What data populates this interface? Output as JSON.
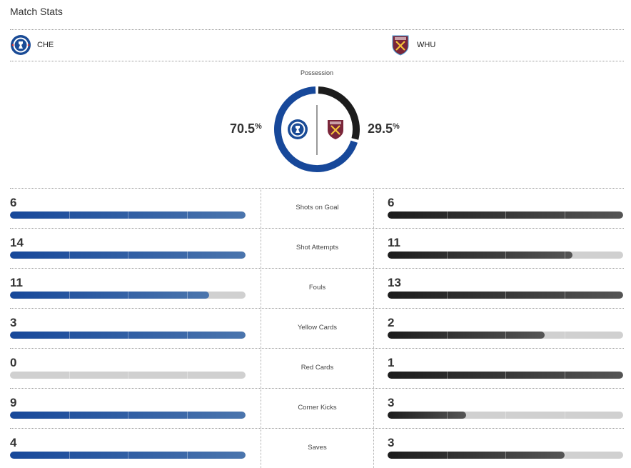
{
  "title": "Match Stats",
  "home": {
    "abbr": "CHE",
    "crest": "chelsea-crest-icon",
    "color": "#17489a",
    "possession": "70.5",
    "possession_value": 70.5
  },
  "away": {
    "abbr": "WHU",
    "crest": "west-ham-crest-icon",
    "color": "#1c1c1c",
    "possession": "29.5",
    "possession_value": 29.5
  },
  "possession_label": "Possession",
  "percent_sign": "%",
  "stats": [
    {
      "label": "Shots on Goal",
      "home": 6,
      "away": 6
    },
    {
      "label": "Shot Attempts",
      "home": 14,
      "away": 11
    },
    {
      "label": "Fouls",
      "home": 11,
      "away": 13
    },
    {
      "label": "Yellow Cards",
      "home": 3,
      "away": 2
    },
    {
      "label": "Red Cards",
      "home": 0,
      "away": 1
    },
    {
      "label": "Corner Kicks",
      "home": 9,
      "away": 3
    },
    {
      "label": "Saves",
      "home": 4,
      "away": 3
    }
  ]
}
